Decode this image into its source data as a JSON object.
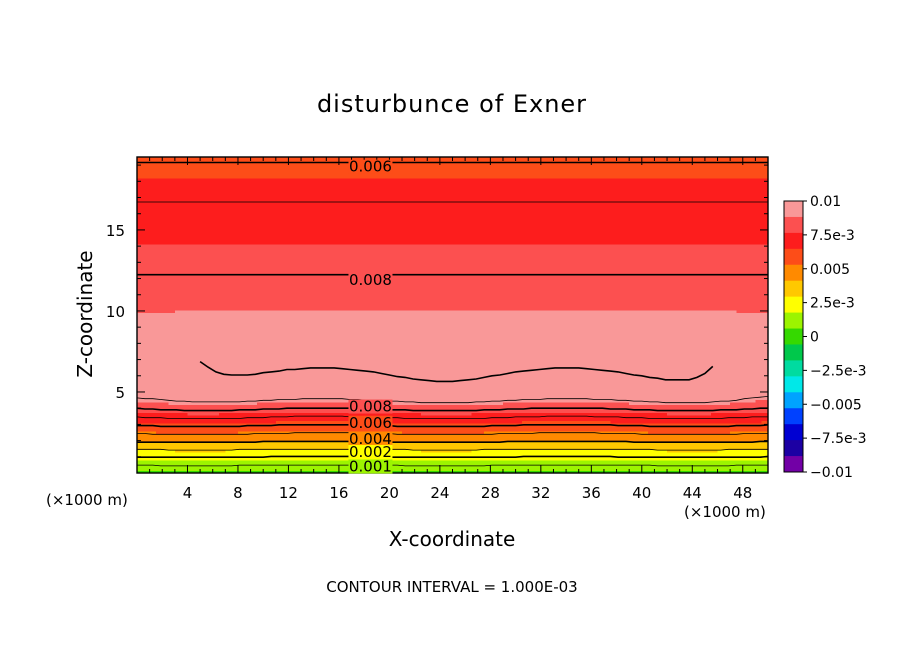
{
  "chart_data": {
    "type": "contour",
    "title": "disturbunce of Exner",
    "xlabel": "X-coordinate",
    "ylabel": "Z-coordinate",
    "x_unit": "(×1000 m)",
    "y_unit": "(×1000 m)",
    "xlim": [
      0,
      50
    ],
    "ylim": [
      0,
      19.5
    ],
    "x_ticks": [
      4,
      8,
      12,
      16,
      20,
      24,
      28,
      32,
      36,
      40,
      44,
      48
    ],
    "y_ticks": [
      5,
      10,
      15
    ],
    "contour_interval": 0.001,
    "footnote": "CONTOUR INTERVAL = 1.000E-03",
    "colorbar": {
      "min": -0.01,
      "max": 0.01,
      "tick_labels": [
        "0.01",
        "7.5e-3",
        "0.005",
        "2.5e-3",
        "0",
        "−2.5e-3",
        "−0.005",
        "−7.5e-3",
        "−0.01"
      ],
      "tick_values": [
        0.01,
        0.0075,
        0.005,
        0.0025,
        0,
        -0.0025,
        -0.005,
        -0.0075,
        -0.01
      ],
      "colors": [
        "#f99898",
        "#fc5050",
        "#fd1d1d",
        "#fd4d18",
        "#ff8a00",
        "#ffc800",
        "#ffff00",
        "#9cf400",
        "#35d900",
        "#00c84b",
        "#00dba0",
        "#00e8e8",
        "#00a3ff",
        "#0041ff",
        "#0000d2",
        "#1c00a3",
        "#7200a6"
      ]
    },
    "profile": {
      "description_z": [
        0.0,
        0.6,
        1.2,
        1.8,
        2.4,
        3.0,
        3.5,
        4.0,
        4.3,
        4.7,
        5.5,
        7.0,
        9.0,
        11.0,
        13.5,
        16.0,
        17.5,
        19.0,
        19.5
      ],
      "values": [
        0.0004,
        0.0012,
        0.0025,
        0.0038,
        0.005,
        0.0062,
        0.0072,
        0.0082,
        0.0088,
        0.0094,
        0.0098,
        0.0103,
        0.0095,
        0.0082,
        0.0078,
        0.0072,
        0.0068,
        0.0061,
        0.0058
      ]
    },
    "contour_labels": [
      {
        "text": "0.006",
        "x": 18.5,
        "z": 18.9
      },
      {
        "text": "0.008",
        "x": 18.5,
        "z": 11.9
      },
      {
        "text": "0.008",
        "x": 18.5,
        "z": 4.1
      },
      {
        "text": "0.006",
        "x": 18.5,
        "z": 3.1
      },
      {
        "text": "0.004",
        "x": 18.5,
        "z": 2.1
      },
      {
        "text": "0.002",
        "x": 18.5,
        "z": 1.3
      },
      {
        "text": "0.001",
        "x": 18.5,
        "z": 0.4
      }
    ]
  }
}
